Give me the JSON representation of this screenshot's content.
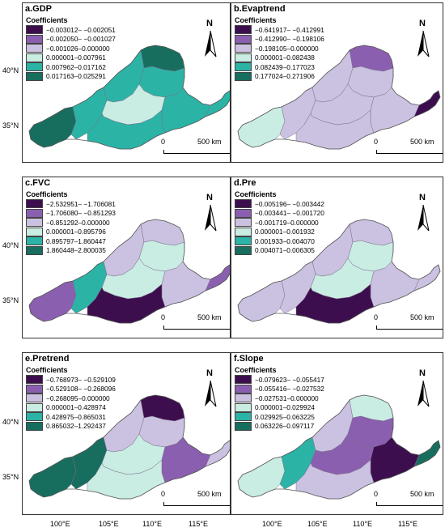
{
  "legend_title": "Coefficients",
  "axis": {
    "lat": [
      "40°N",
      "35°N"
    ],
    "lon": [
      "100°E",
      "105°E",
      "110°E",
      "115°E"
    ]
  },
  "north_label": "N",
  "scale": {
    "zero": "0",
    "end": "500 km"
  },
  "panels": [
    {
      "id": "a",
      "title": "a.GDP",
      "colors": [
        "#3d0e4e",
        "#8a5fb0",
        "#cbc1e0",
        "#c9ece3",
        "#2bb3a6",
        "#176e5e"
      ],
      "classes": [
        "−0.003012– −0.002051",
        "−0.002050– −0.001027",
        "−0.001026–0.000000",
        "0.000001–0.007961",
        "0.007962–0.017162",
        "0.017163–0.025291"
      ]
    },
    {
      "id": "b",
      "title": "b.Evaptrend",
      "colors": [
        "#3d0e4e",
        "#8a5fb0",
        "#cbc1e0",
        "#c9ece3",
        "#2bb3a6",
        "#176e5e"
      ],
      "classes": [
        "−0.641917– −0.412991",
        "−0.412990– −0.198106",
        "−0.198105–0.000000",
        "0.000001–0.082438",
        "0.082439–0.177023",
        "0.177024–0.271906"
      ]
    },
    {
      "id": "c",
      "title": "c.FVC",
      "colors": [
        "#3d0e4e",
        "#8a5fb0",
        "#cbc1e0",
        "#c9ece3",
        "#2bb3a6",
        "#176e5e"
      ],
      "classes": [
        "−2.532951– −1.706081",
        "−1.706080– −0.851293",
        "−0.851292–0.000000",
        "0.000001–0.895796",
        "0.895797–1.860447",
        "1.860448–2.800035"
      ]
    },
    {
      "id": "d",
      "title": "d.Pre",
      "colors": [
        "#3d0e4e",
        "#8a5fb0",
        "#cbc1e0",
        "#c9ece3",
        "#2bb3a6",
        "#176e5e"
      ],
      "classes": [
        "−0.005196– −0.003442",
        "−0.003441– −0.001720",
        "−0.001719–0.000000",
        "0.000001–0.001932",
        "0.001933–0.004070",
        "0.004071–0.006305"
      ]
    },
    {
      "id": "e",
      "title": "e.Pretrend",
      "colors": [
        "#3d0e4e",
        "#8a5fb0",
        "#cbc1e0",
        "#c9ece3",
        "#2bb3a6",
        "#176e5e"
      ],
      "classes": [
        "−0.768973– −0.529109",
        "−0.529108– −0.268096",
        "−0.268095–0.000000",
        "0.000001–0.428974",
        "0.428975–0.865031",
        "0.865032–1.292437"
      ]
    },
    {
      "id": "f",
      "title": "f.Slope",
      "colors": [
        "#3d0e4e",
        "#8a5fb0",
        "#cbc1e0",
        "#c9ece3",
        "#2bb3a6",
        "#176e5e"
      ],
      "classes": [
        "−0.079623– −0.055417",
        "−0.055416– −0.027532",
        "−0.027531–0.000000",
        "0.000001–0.029924",
        "0.029925–0.063225",
        "0.063226–0.097117"
      ]
    }
  ]
}
